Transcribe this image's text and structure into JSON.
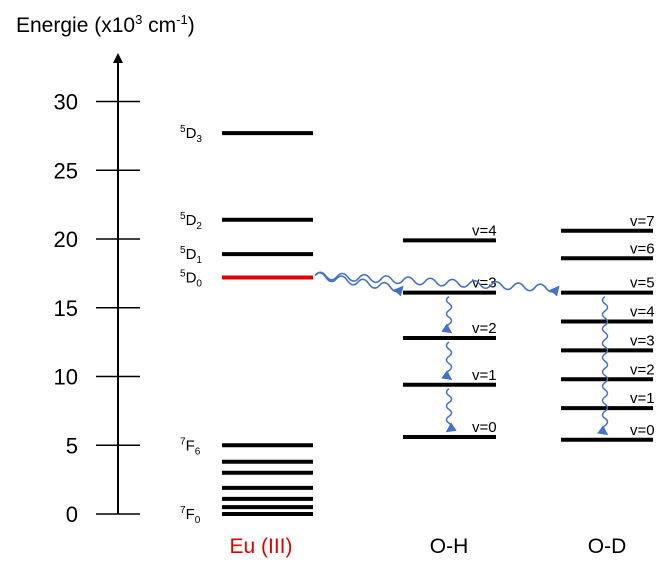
{
  "axis": {
    "title_main": "Energie (x10",
    "title_exp": "3",
    "title_unit": " cm",
    "title_unit_exp": "-1",
    "title_close": ")",
    "ticks": [
      {
        "value": 0,
        "label": "0"
      },
      {
        "value": 5,
        "label": "5"
      },
      {
        "value": 10,
        "label": "10"
      },
      {
        "value": 15,
        "label": "15"
      },
      {
        "value": 20,
        "label": "20"
      },
      {
        "value": 25,
        "label": "25"
      },
      {
        "value": 30,
        "label": "30"
      }
    ],
    "range": [
      0,
      33
    ]
  },
  "columns": {
    "eu": {
      "label": "Eu (III)",
      "label_color": "#e00000",
      "levels": [
        {
          "energy": 27.7,
          "label_main": "D",
          "label_sup": "5",
          "label_sub": "3"
        },
        {
          "energy": 21.4,
          "label_main": "D",
          "label_sup": "5",
          "label_sub": "2"
        },
        {
          "energy": 18.9,
          "label_main": "D",
          "label_sup": "5",
          "label_sub": "1"
        },
        {
          "energy": 17.2,
          "label_main": "D",
          "label_sup": "5",
          "label_sub": "0",
          "color": "#e00000"
        },
        {
          "energy": 5.0,
          "label_main": "F",
          "label_sup": "7",
          "label_sub": "6"
        },
        {
          "energy": 3.8
        },
        {
          "energy": 3.0
        },
        {
          "energy": 1.9
        },
        {
          "energy": 1.1
        },
        {
          "energy": 0.5
        },
        {
          "energy": 0.0,
          "label_main": "F",
          "label_sup": "7",
          "label_sub": "0"
        }
      ]
    },
    "oh": {
      "label": "O-H",
      "levels": [
        {
          "energy": 19.9,
          "label": "v=4"
        },
        {
          "energy": 16.1,
          "label": "v=3"
        },
        {
          "energy": 12.8,
          "label": "v=2"
        },
        {
          "energy": 9.4,
          "label": "v=1"
        },
        {
          "energy": 5.6,
          "label": "v=0"
        }
      ]
    },
    "od": {
      "label": "O-D",
      "levels": [
        {
          "energy": 20.6,
          "label": "v=7"
        },
        {
          "energy": 18.6,
          "label": "v=6"
        },
        {
          "energy": 16.1,
          "label": "v=5"
        },
        {
          "energy": 14.0,
          "label": "v=4"
        },
        {
          "energy": 11.9,
          "label": "v=3"
        },
        {
          "energy": 9.8,
          "label": "v=2"
        },
        {
          "energy": 7.7,
          "label": "v=1"
        },
        {
          "energy": 5.4,
          "label": "v=0"
        }
      ]
    }
  },
  "transitions": {
    "color": "#4472c4",
    "transfers": [
      {
        "from_column": "eu",
        "from_energy": 17.2,
        "to_column": "oh",
        "to_energy": 16.1
      },
      {
        "from_column": "eu",
        "from_energy": 17.2,
        "to_column": "od",
        "to_energy": 16.1
      }
    ],
    "relaxations": [
      {
        "column": "oh",
        "from_v": 3,
        "to_v": 2
      },
      {
        "column": "oh",
        "from_v": 2,
        "to_v": 1
      },
      {
        "column": "oh",
        "from_v": 1,
        "to_v": 0
      },
      {
        "column": "od",
        "from_v": 5,
        "to_v": 0
      }
    ]
  }
}
